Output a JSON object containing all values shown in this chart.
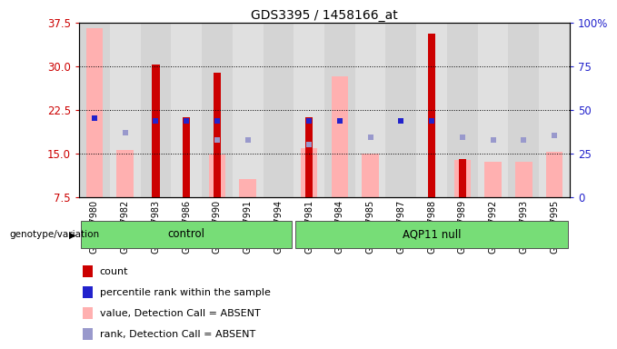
{
  "title": "GDS3395 / 1458166_at",
  "samples": [
    "GSM267980",
    "GSM267982",
    "GSM267983",
    "GSM267986",
    "GSM267990",
    "GSM267991",
    "GSM267994",
    "GSM267981",
    "GSM267984",
    "GSM267985",
    "GSM267987",
    "GSM267988",
    "GSM267989",
    "GSM267992",
    "GSM267993",
    "GSM267995"
  ],
  "n_control": 7,
  "n_aqp11": 9,
  "red_bars": [
    0.0,
    0.0,
    30.3,
    21.2,
    28.8,
    0.0,
    0.0,
    21.2,
    0.0,
    0.0,
    0.0,
    35.5,
    14.0,
    0.0,
    0.0,
    0.0
  ],
  "pink_bars": [
    36.5,
    15.5,
    0.0,
    0.0,
    14.8,
    10.5,
    0.0,
    15.8,
    28.2,
    15.0,
    0.0,
    0.0,
    13.8,
    13.5,
    13.5,
    15.2
  ],
  "blue_dark": [
    21.0,
    0.0,
    20.5,
    20.5,
    20.5,
    0.0,
    0.0,
    20.5,
    20.5,
    0.0,
    20.5,
    20.5,
    0.0,
    0.0,
    0.0,
    0.0
  ],
  "blue_light": [
    0.0,
    18.5,
    0.0,
    0.0,
    17.2,
    17.2,
    0.0,
    16.5,
    0.0,
    17.8,
    0.0,
    0.0,
    17.8,
    17.2,
    17.2,
    18.0
  ],
  "ylim_left": [
    7.5,
    37.5
  ],
  "ylim_right": [
    0,
    100
  ],
  "yticks_left": [
    7.5,
    15.0,
    22.5,
    30.0,
    37.5
  ],
  "yticks_right": [
    0,
    25,
    50,
    75,
    100
  ],
  "grid_lines": [
    15.0,
    22.5,
    30.0
  ],
  "col_bg_even": "#d4d4d4",
  "col_bg_odd": "#e0e0e0",
  "red_color": "#cc0000",
  "pink_color": "#ffb0b0",
  "blue_dark_color": "#2222cc",
  "blue_light_color": "#9999cc",
  "green_color": "#77dd77",
  "left_axis_color": "#cc0000",
  "right_axis_color": "#2222cc",
  "legend_items": [
    "count",
    "percentile rank within the sample",
    "value, Detection Call = ABSENT",
    "rank, Detection Call = ABSENT"
  ]
}
